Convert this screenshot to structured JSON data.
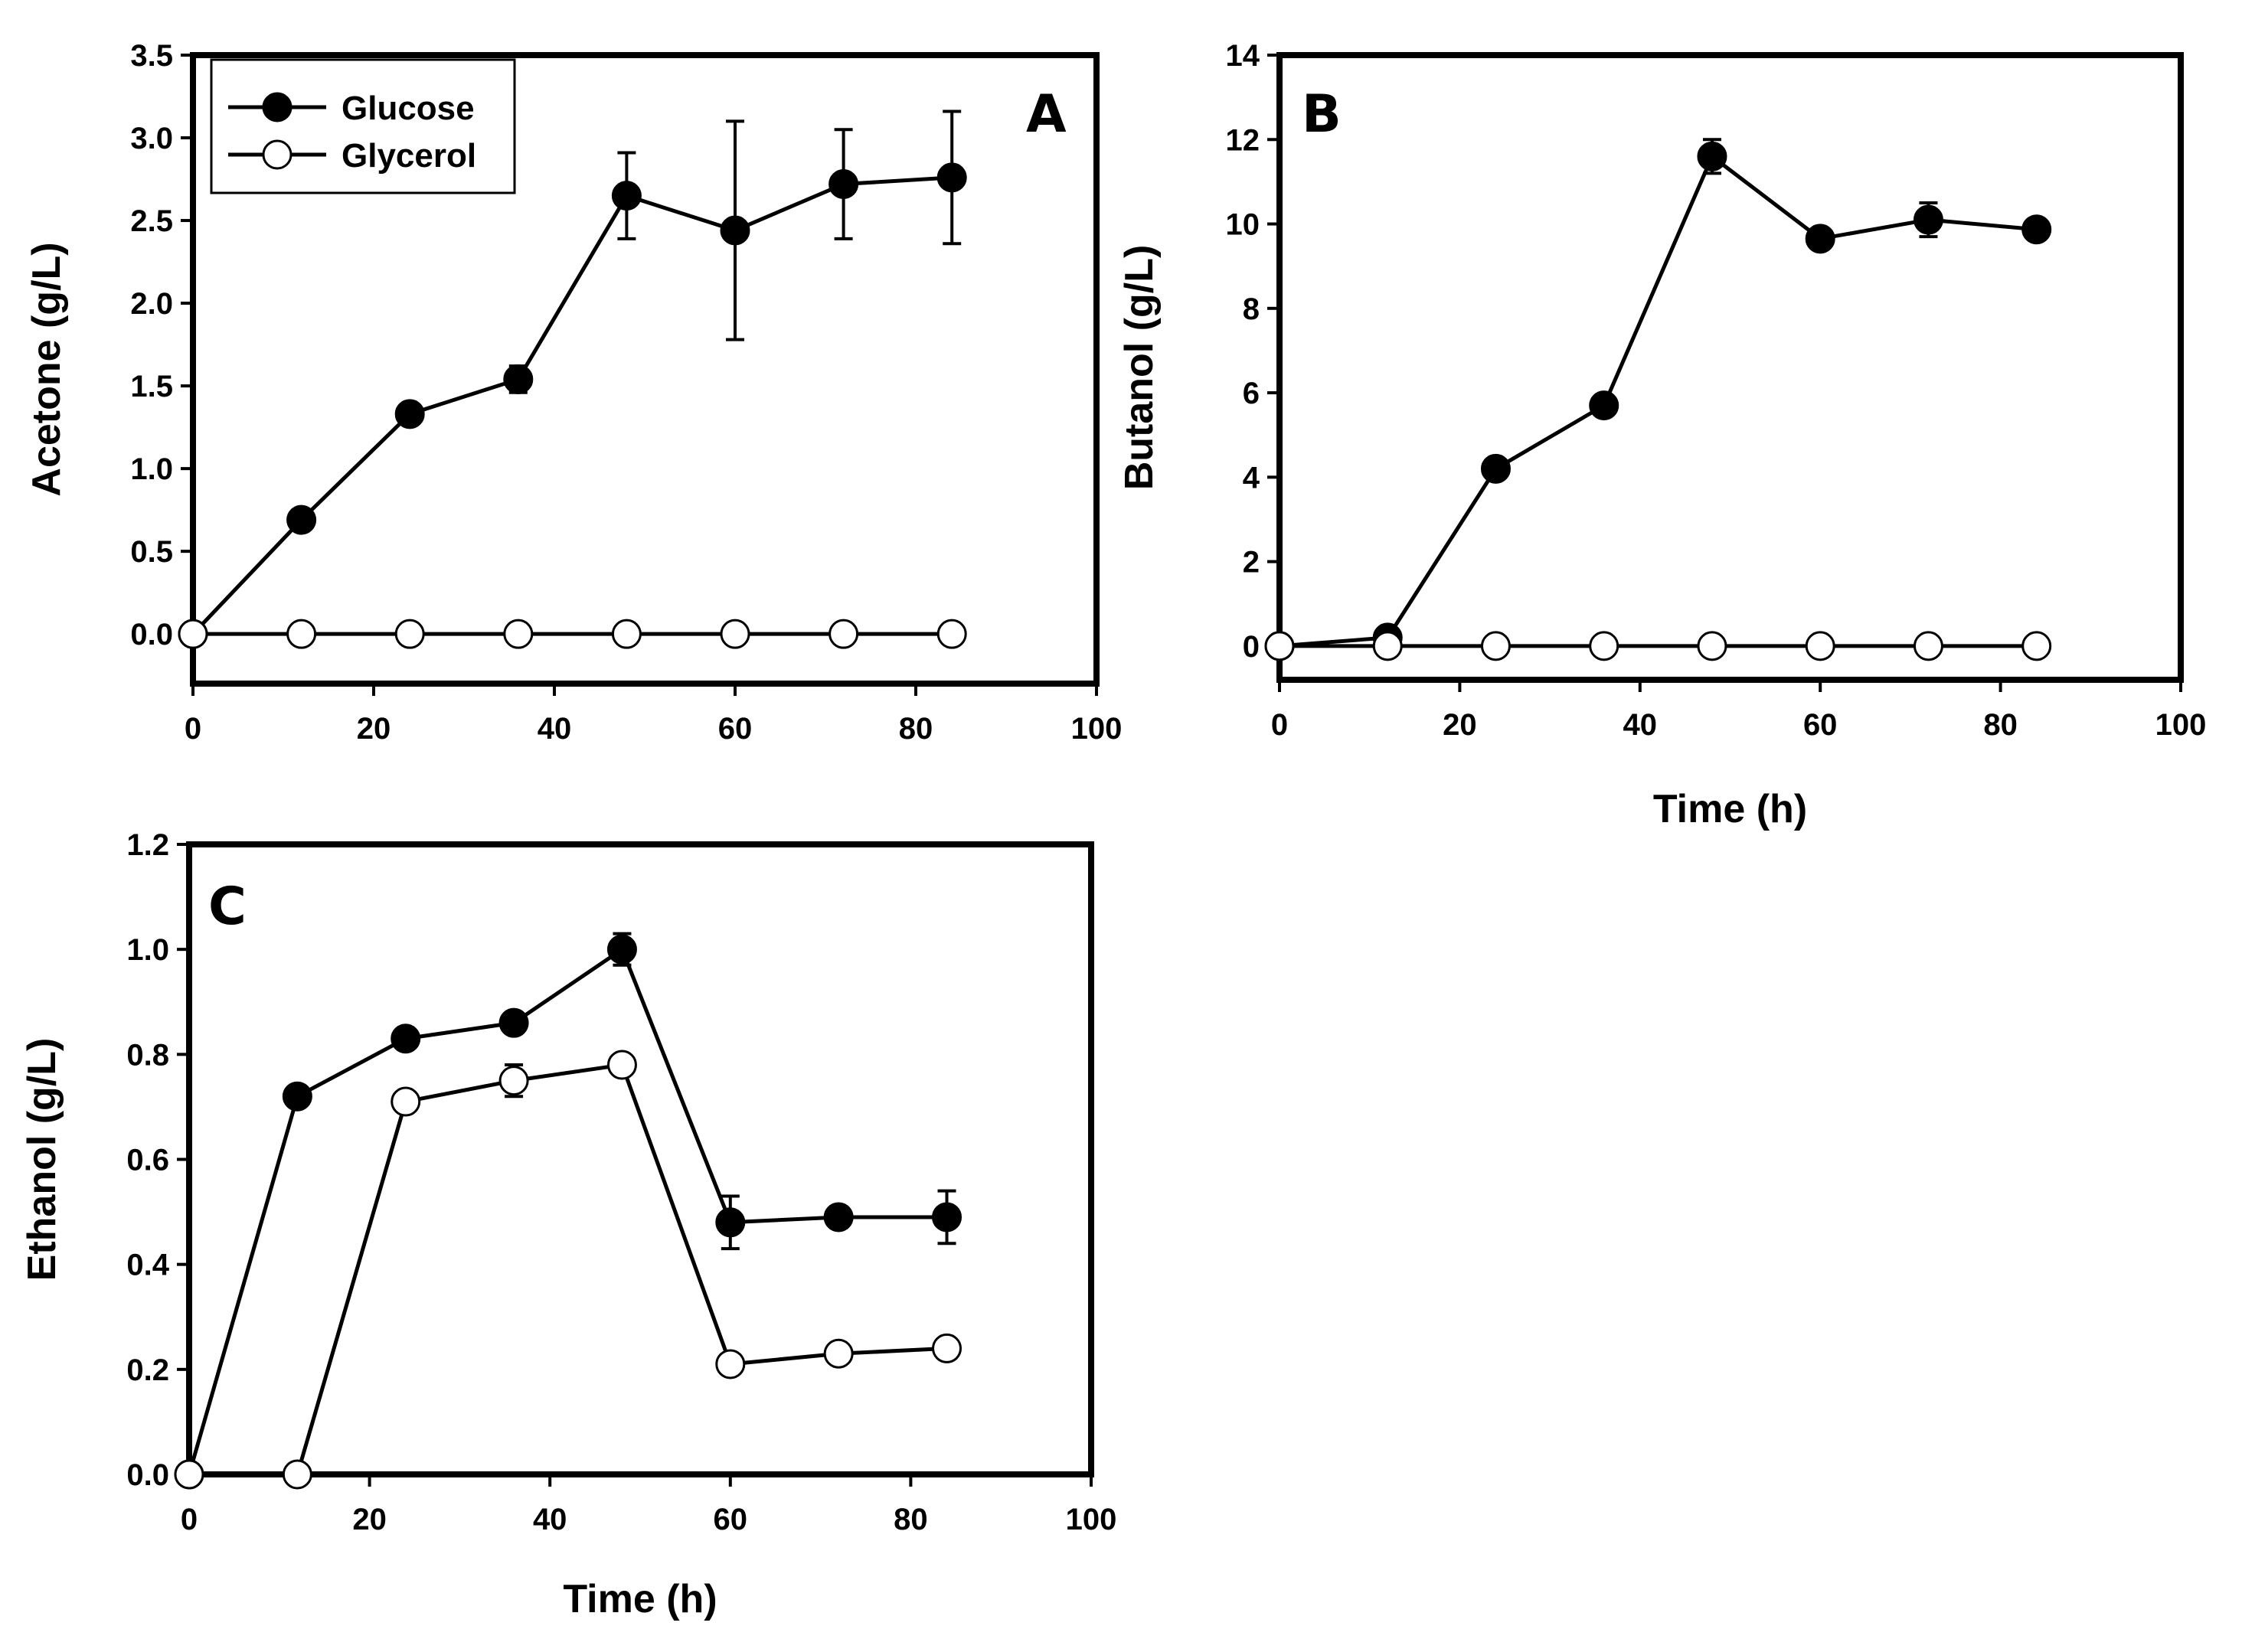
{
  "chart_data": [
    {
      "id": "A",
      "type": "line",
      "panel_label": "A",
      "title": "",
      "xlabel": "",
      "ylabel": "Acetone (g/L)",
      "xlim": [
        0,
        100
      ],
      "ylim": [
        -0.3,
        3.5
      ],
      "xticks": [
        0,
        20,
        40,
        60,
        80,
        100
      ],
      "yticks": [
        0.0,
        0.5,
        1.0,
        1.5,
        2.0,
        2.5,
        3.0,
        3.5
      ],
      "ytick_labels": [
        "0.0",
        "0.5",
        "1.0",
        "1.5",
        "2.0",
        "2.5",
        "3.0",
        "3.5"
      ],
      "legend": {
        "position": "top-left",
        "entries": [
          "Glucose",
          "Glycerol"
        ]
      },
      "series": [
        {
          "name": "Glucose",
          "marker": "filled-circle",
          "x": [
            0,
            12,
            24,
            36,
            48,
            60,
            72,
            84
          ],
          "values": [
            0,
            0.69,
            1.33,
            1.54,
            2.65,
            2.44,
            2.72,
            2.76
          ],
          "errors": [
            0,
            0,
            0.06,
            0.08,
            0.26,
            0.66,
            0.33,
            0.4
          ]
        },
        {
          "name": "Glycerol",
          "marker": "open-circle",
          "x": [
            0,
            12,
            24,
            36,
            48,
            60,
            72,
            84
          ],
          "values": [
            0,
            0,
            0,
            0,
            0,
            0,
            0,
            0
          ],
          "errors": [
            0,
            0,
            0,
            0,
            0,
            0,
            0,
            0
          ]
        }
      ]
    },
    {
      "id": "B",
      "type": "line",
      "panel_label": "B",
      "title": "",
      "xlabel": "Time (h)",
      "ylabel": "Butanol (g/L)",
      "xlim": [
        0,
        100
      ],
      "ylim": [
        -0.8,
        14
      ],
      "xticks": [
        0,
        20,
        40,
        60,
        80,
        100
      ],
      "yticks": [
        0,
        2,
        4,
        6,
        8,
        10,
        12,
        14
      ],
      "ytick_labels": [
        "0",
        "2",
        "4",
        "6",
        "8",
        "10",
        "12",
        "14"
      ],
      "series": [
        {
          "name": "Glucose",
          "marker": "filled-circle",
          "x": [
            0,
            12,
            24,
            36,
            48,
            60,
            72,
            84
          ],
          "values": [
            0,
            0.2,
            4.2,
            5.7,
            11.6,
            9.65,
            10.1,
            9.87
          ],
          "errors": [
            0,
            0,
            0,
            0,
            0.4,
            0,
            0.4,
            0
          ]
        },
        {
          "name": "Glycerol",
          "marker": "open-circle",
          "x": [
            0,
            12,
            24,
            36,
            48,
            60,
            72,
            84
          ],
          "values": [
            0,
            0,
            0,
            0,
            0,
            0,
            0,
            0
          ],
          "errors": [
            0,
            0,
            0,
            0,
            0,
            0,
            0,
            0
          ]
        }
      ]
    },
    {
      "id": "C",
      "type": "line",
      "panel_label": "C",
      "title": "",
      "xlabel": "Time (h)",
      "ylabel": "Ethanol (g/L)",
      "xlim": [
        0,
        100
      ],
      "ylim": [
        0,
        1.2
      ],
      "xticks": [
        0,
        20,
        40,
        60,
        80,
        100
      ],
      "yticks": [
        0.0,
        0.2,
        0.4,
        0.6,
        0.8,
        1.0,
        1.2
      ],
      "ytick_labels": [
        "0.0",
        "0.2",
        "0.4",
        "0.6",
        "0.8",
        "1.0",
        "1.2"
      ],
      "series": [
        {
          "name": "Glucose",
          "marker": "filled-circle",
          "x": [
            0,
            12,
            24,
            36,
            48,
            60,
            72,
            84
          ],
          "values": [
            0,
            0.72,
            0.83,
            0.86,
            1.0,
            0.48,
            0.49,
            0.49
          ],
          "errors": [
            0,
            0,
            0,
            0,
            0.03,
            0.05,
            0.02,
            0.05
          ]
        },
        {
          "name": "Glycerol",
          "marker": "open-circle",
          "x": [
            0,
            12,
            24,
            36,
            48,
            60,
            72,
            84
          ],
          "values": [
            0,
            0,
            0.71,
            0.75,
            0.78,
            0.21,
            0.23,
            0.24
          ],
          "errors": [
            0,
            0,
            0,
            0.03,
            0,
            0,
            0,
            0
          ]
        }
      ]
    }
  ]
}
